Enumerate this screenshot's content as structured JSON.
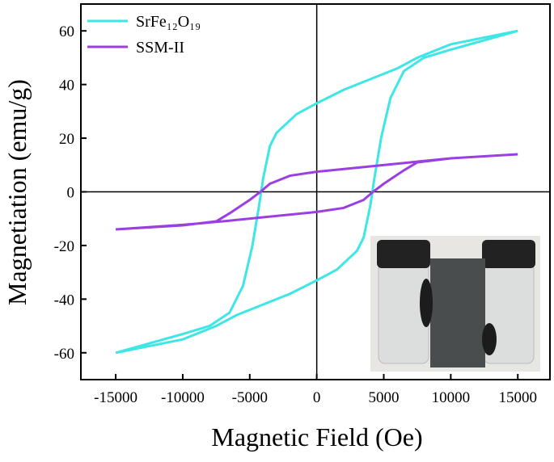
{
  "chart_data": {
    "type": "line",
    "xlabel": "Magnetic Field (Oe)",
    "ylabel": "Magnetiation (emu/g)",
    "xlim": [
      -17600,
      17400
    ],
    "ylim": [
      -70,
      70
    ],
    "xticks": [
      -15000,
      -10000,
      -5000,
      0,
      5000,
      10000,
      15000
    ],
    "yticks": [
      -60,
      -40,
      -20,
      0,
      20,
      40,
      60
    ],
    "legend": "upper left",
    "series": [
      {
        "name": "SrFe₁₂O₁₉",
        "color": "#3ee6e6",
        "x": [
          15000,
          10000,
          7500,
          6000,
          4000,
          2000,
          0,
          -1500,
          -3000,
          -3500,
          -4000,
          -4300,
          -4800,
          -5500,
          -6500,
          -8000,
          -10000,
          -15000,
          -10000,
          -7500,
          -6000,
          -4000,
          -2000,
          0,
          1500,
          3000,
          3500,
          4000,
          4300,
          4800,
          5500,
          6500,
          8000,
          10000,
          15000
        ],
        "values": [
          60,
          55,
          50,
          46,
          42,
          38,
          33,
          29,
          22,
          17,
          5,
          -5,
          -20,
          -35,
          -45,
          -50,
          -53,
          -60,
          -55,
          -50,
          -46,
          -42,
          -38,
          -33,
          -29,
          -22,
          -17,
          -5,
          5,
          20,
          35,
          45,
          50,
          53,
          60
        ]
      },
      {
        "name": "SSM-II",
        "color": "#9b3fe0",
        "x": [
          15000,
          10000,
          7000,
          4000,
          0,
          -2000,
          -3500,
          -4200,
          -5000,
          -6500,
          -7500,
          -10000,
          -15000,
          -10000,
          -7000,
          -4000,
          0,
          2000,
          3500,
          4200,
          5000,
          6500,
          7500,
          10000,
          15000
        ],
        "values": [
          14,
          12.5,
          11,
          9.5,
          7.5,
          6,
          3,
          0,
          -3,
          -8,
          -11,
          -12.5,
          -14,
          -12.3,
          -11,
          -9.5,
          -7.5,
          -6,
          -3,
          0,
          3,
          8,
          11,
          12.5,
          14
        ]
      }
    ]
  }
}
